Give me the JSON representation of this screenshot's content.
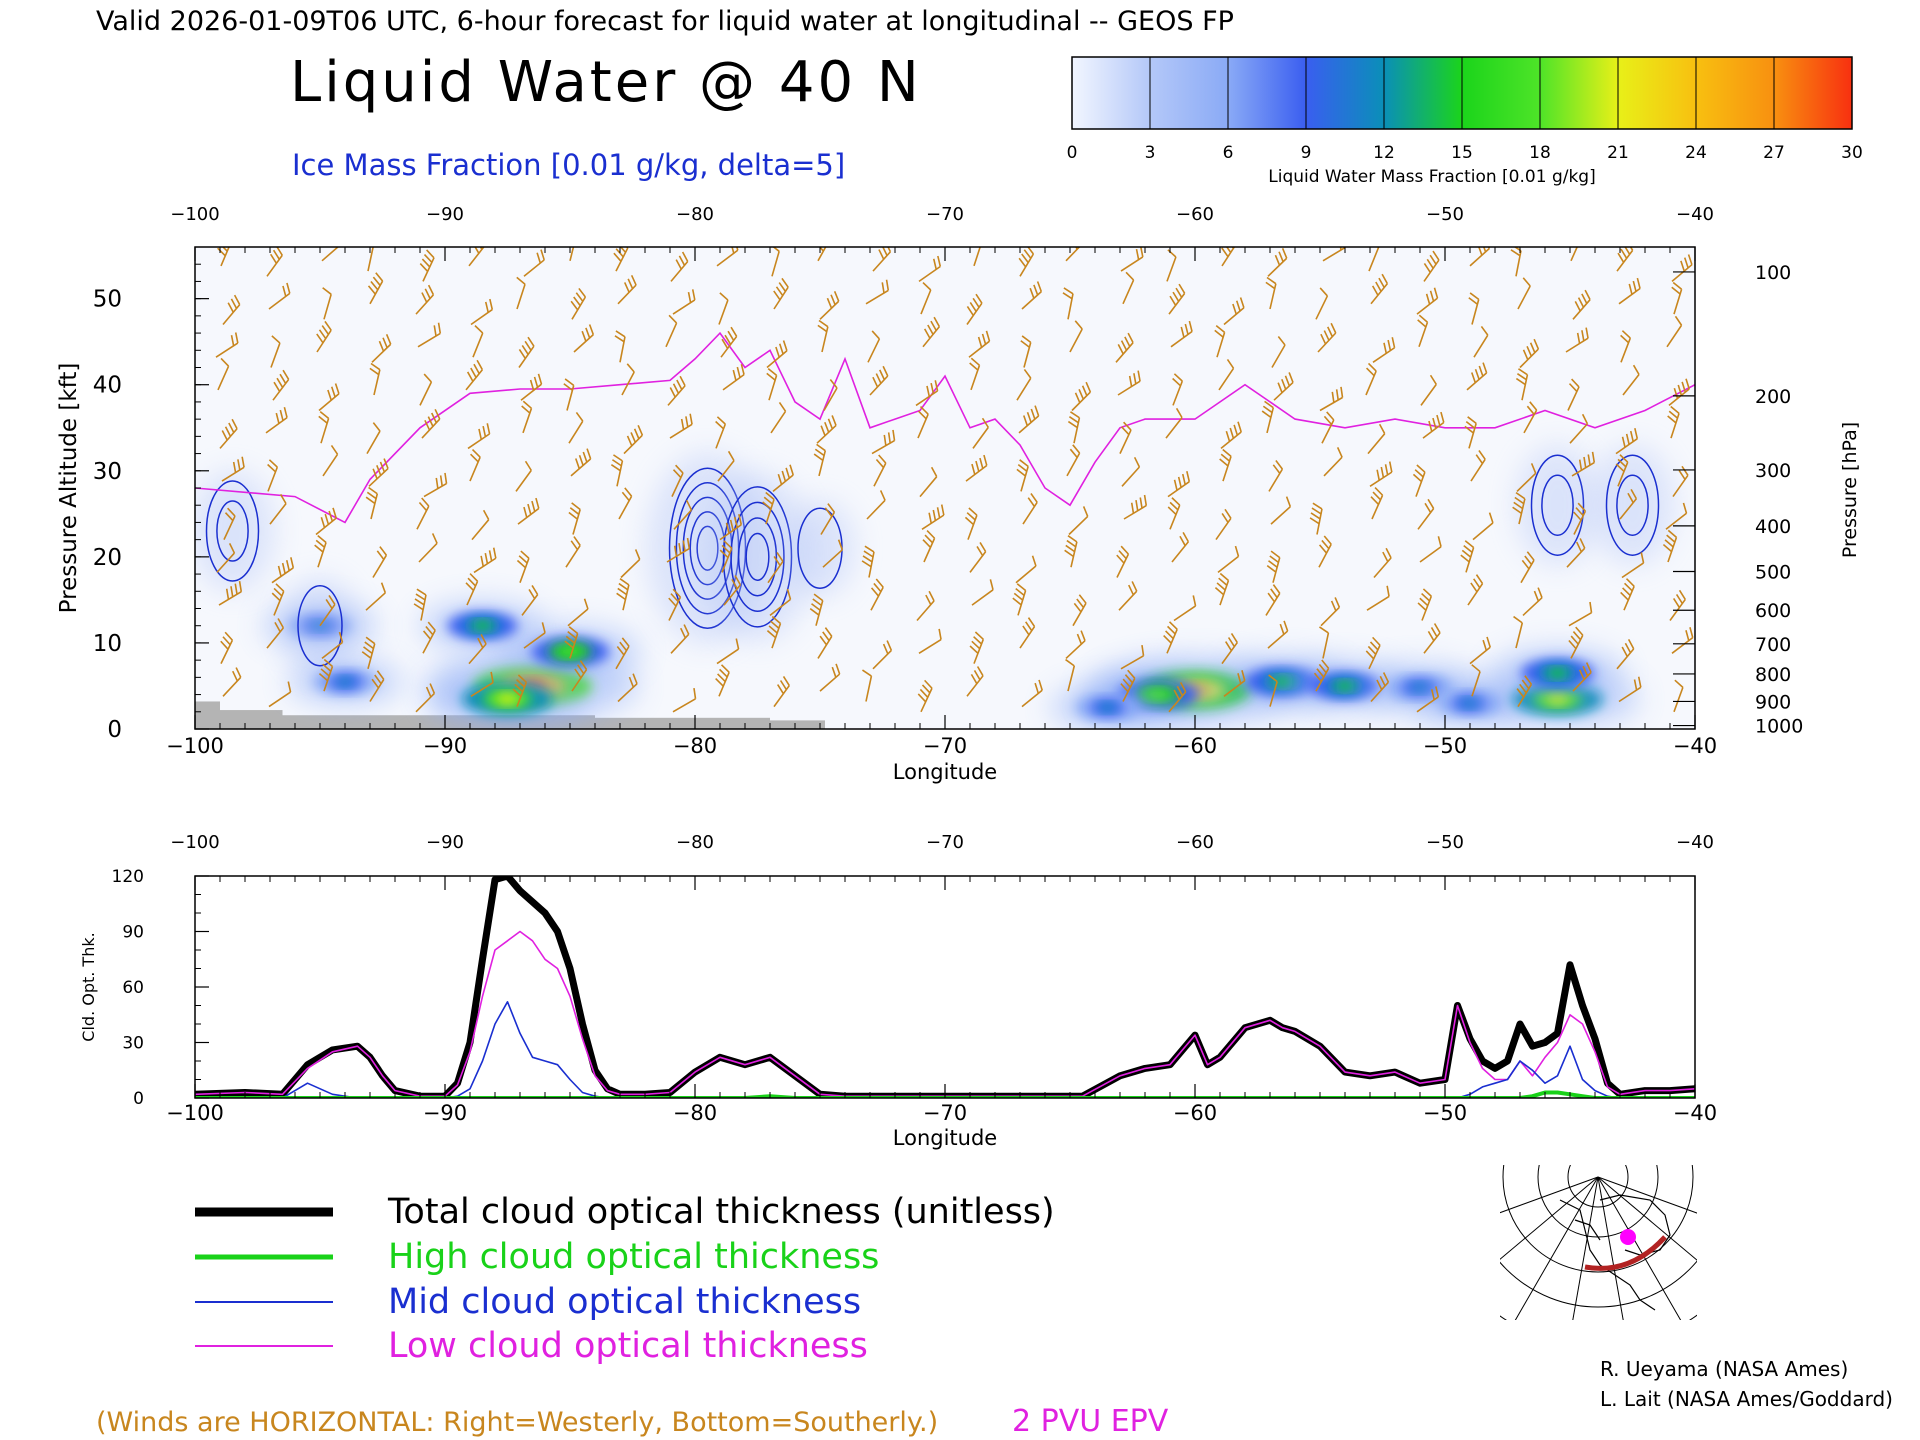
{
  "header": {
    "valid_line": "Valid 2026-01-09T06 UTC, 6-hour forecast for liquid water at longitudinal -- GEOS FP",
    "title": "Liquid Water @ 40 N",
    "subtitle": "Ice Mass Fraction [0.01 g/kg, delta=5]"
  },
  "colorbar": {
    "label": "Liquid Water Mass Fraction [0.01 g/kg]",
    "ticks": [
      "0",
      "3",
      "6",
      "9",
      "12",
      "15",
      "18",
      "21",
      "24",
      "27",
      "30"
    ],
    "colors": [
      "#f2f6ff",
      "#b4c8f8",
      "#8aaaf6",
      "#3a5ef0",
      "#0a8fb8",
      "#1bd41b",
      "#4ee428",
      "#e8f018",
      "#f8c010",
      "#f89010",
      "#f83010"
    ]
  },
  "colors": {
    "wind": "#c8861e",
    "ice": "#1a2fd0",
    "epv": "#e021e0",
    "total": "#000000",
    "high": "#19d219",
    "mid": "#1a2fd0",
    "low": "#e021e0",
    "terrain": "#b4b4b4"
  },
  "chart_data": [
    {
      "type": "heatmap",
      "name": "liquid-water-cross-section",
      "title": "Liquid Water @ 40 N",
      "xlabel": "Longitude",
      "ylabel": "Pressure Altitude [kft]",
      "ylabel_right": "Pressure [hPa]",
      "xlim": [
        -100,
        -40
      ],
      "ylim": [
        0,
        56
      ],
      "x_ticks": [
        "-100",
        "-90",
        "-80",
        "-70",
        "-60",
        "-50",
        "-40"
      ],
      "y_ticks": [
        "0",
        "10",
        "20",
        "30",
        "40",
        "50"
      ],
      "pressure_ticks": [
        {
          "label": "100",
          "kft": 53.1
        },
        {
          "label": "200",
          "kft": 38.7
        },
        {
          "label": "300",
          "kft": 30.1
        },
        {
          "label": "400",
          "kft": 23.6
        },
        {
          "label": "500",
          "kft": 18.3
        },
        {
          "label": "600",
          "kft": 13.8
        },
        {
          "label": "700",
          "kft": 9.9
        },
        {
          "label": "800",
          "kft": 6.4
        },
        {
          "label": "900",
          "kft": 3.2
        },
        {
          "label": "1000",
          "kft": 0.4
        }
      ],
      "liquid_blobs": [
        {
          "lon": -86.5,
          "kft": 5.0,
          "value": 30
        },
        {
          "lon": -87.5,
          "kft": 3.5,
          "value": 21
        },
        {
          "lon": -85.0,
          "kft": 9.0,
          "value": 17
        },
        {
          "lon": -88.5,
          "kft": 12.0,
          "value": 14
        },
        {
          "lon": -94.0,
          "kft": 5.5,
          "value": 12
        },
        {
          "lon": -95.0,
          "kft": 12.0,
          "value": 12
        },
        {
          "lon": -60.0,
          "kft": 4.5,
          "value": 28
        },
        {
          "lon": -61.5,
          "kft": 4.0,
          "value": 18
        },
        {
          "lon": -56.5,
          "kft": 5.5,
          "value": 16
        },
        {
          "lon": -54.0,
          "kft": 5.0,
          "value": 14
        },
        {
          "lon": -51.0,
          "kft": 4.8,
          "value": 13
        },
        {
          "lon": -63.5,
          "kft": 2.5,
          "value": 12
        },
        {
          "lon": -49.0,
          "kft": 3.0,
          "value": 12
        },
        {
          "lon": -45.5,
          "kft": 3.5,
          "value": 21
        },
        {
          "lon": -45.5,
          "kft": 6.5,
          "value": 15
        }
      ],
      "ice_mass_fraction_max": [
        {
          "lon": -79.5,
          "kft": 21.0,
          "value": 25
        },
        {
          "lon": -77.5,
          "kft": 20.0,
          "value": 20
        },
        {
          "lon": -98.5,
          "kft": 23.0,
          "value": 10
        },
        {
          "lon": -45.5,
          "kft": 26.0,
          "value": 10
        },
        {
          "lon": -42.5,
          "kft": 26.0,
          "value": 10
        },
        {
          "lon": -95.0,
          "kft": 12.0,
          "value": 5
        },
        {
          "lon": -75.0,
          "kft": 21.0,
          "value": 5
        }
      ],
      "epv_2pvu_kft": {
        "lon": [
          -100,
          -96,
          -94,
          -93,
          -91,
          -89,
          -87,
          -85,
          -83,
          -81,
          -80,
          -79,
          -78,
          -77,
          -76,
          -75,
          -74,
          -73,
          -72,
          -71,
          -70,
          -69,
          -68,
          -67,
          -66,
          -65,
          -64,
          -63,
          -62,
          -60,
          -58,
          -56,
          -54,
          -52,
          -50,
          -48,
          -46,
          -44,
          -42,
          -40
        ],
        "kft": [
          28,
          27,
          24,
          29,
          35,
          39,
          39.5,
          39.5,
          40,
          40.5,
          43,
          46,
          42,
          44,
          38,
          36,
          43,
          35,
          36,
          37,
          41,
          35,
          36,
          33,
          28,
          26,
          31,
          35,
          36,
          36,
          40,
          36,
          35,
          36,
          35,
          35,
          37,
          35,
          37,
          40
        ]
      },
      "terrain_kft": [
        {
          "lon_from": -100,
          "lon_to": -99,
          "kft": 3.2
        },
        {
          "lon_from": -99,
          "lon_to": -96.5,
          "kft": 2.2
        },
        {
          "lon_from": -96.5,
          "lon_to": -84,
          "kft": 1.6
        },
        {
          "lon_from": -84,
          "lon_to": -77,
          "kft": 1.3
        },
        {
          "lon_from": -77,
          "lon_to": -74.8,
          "kft": 1.0
        }
      ],
      "wind_barb_grid": {
        "lon_step": 2,
        "kft_step": 5
      }
    },
    {
      "type": "line",
      "name": "cloud-optical-thickness",
      "xlabel": "Longitude",
      "ylabel": "Cld. Opt. Thk.",
      "xlim": [
        -100,
        -40
      ],
      "ylim": [
        0,
        120
      ],
      "x_ticks": [
        "-100",
        "-90",
        "-80",
        "-70",
        "-60",
        "-50",
        "-40"
      ],
      "y_ticks": [
        "0",
        "30",
        "60",
        "90",
        "120"
      ],
      "x": [
        -100,
        -98,
        -96.5,
        -95.5,
        -94.5,
        -93.5,
        -93,
        -92.5,
        -92,
        -91,
        -90,
        -89.5,
        -89,
        -88.5,
        -88,
        -87.5,
        -87,
        -86.5,
        -86,
        -85.5,
        -85,
        -84.5,
        -84,
        -83.5,
        -83,
        -82,
        -81,
        -80,
        -79,
        -78,
        -77,
        -76,
        -75,
        -74,
        -72,
        -70,
        -68,
        -66,
        -64.5,
        -63,
        -62,
        -61,
        -60,
        -59.5,
        -59,
        -58,
        -57,
        -56.5,
        -56,
        -55,
        -54,
        -53,
        -52,
        -51,
        -50,
        -49.5,
        -49,
        -48.5,
        -48,
        -47.5,
        -47,
        -46.5,
        -46,
        -45.5,
        -45,
        -44.5,
        -44,
        -43.5,
        -43,
        -42,
        -41,
        -40
      ],
      "series": [
        {
          "name": "Total cloud optical thickness (unitless)",
          "values": [
            2,
            3,
            2,
            18,
            26,
            28,
            22,
            12,
            4,
            1,
            1,
            8,
            30,
            75,
            118,
            120,
            112,
            106,
            100,
            90,
            70,
            40,
            15,
            5,
            2,
            2,
            3,
            14,
            22,
            18,
            22,
            12,
            2,
            1,
            1,
            1,
            1,
            1,
            1,
            12,
            16,
            18,
            34,
            18,
            22,
            38,
            42,
            38,
            36,
            28,
            14,
            12,
            14,
            8,
            10,
            50,
            32,
            20,
            16,
            20,
            40,
            28,
            30,
            35,
            72,
            50,
            32,
            8,
            2,
            4,
            4,
            5
          ]
        },
        {
          "name": "Low cloud optical thickness",
          "values": [
            2,
            3,
            2,
            16,
            25,
            28,
            22,
            12,
            4,
            1,
            1,
            7,
            25,
            55,
            80,
            85,
            90,
            85,
            75,
            70,
            55,
            32,
            12,
            4,
            2,
            2,
            3,
            14,
            22,
            18,
            22,
            12,
            2,
            1,
            1,
            1,
            1,
            1,
            1,
            12,
            16,
            18,
            34,
            18,
            22,
            38,
            42,
            38,
            36,
            28,
            14,
            12,
            14,
            8,
            10,
            50,
            30,
            16,
            10,
            10,
            20,
            12,
            22,
            30,
            45,
            40,
            25,
            6,
            2,
            4,
            4,
            5
          ]
        },
        {
          "name": "Mid cloud optical thickness",
          "values": [
            0,
            0,
            0,
            8,
            2,
            0,
            0,
            0,
            0,
            0,
            0,
            1,
            5,
            20,
            40,
            52,
            35,
            22,
            20,
            18,
            10,
            3,
            1,
            0,
            0,
            0,
            0,
            0,
            0,
            0,
            0,
            0,
            0,
            0,
            0,
            0,
            0,
            0,
            0,
            0,
            0,
            0,
            0,
            0,
            0,
            0,
            0,
            0,
            0,
            0,
            0,
            0,
            0,
            0,
            0,
            0,
            2,
            6,
            8,
            10,
            20,
            15,
            8,
            12,
            28,
            10,
            4,
            1,
            0,
            0,
            0,
            0
          ]
        },
        {
          "name": "High cloud optical thickness",
          "values": [
            0,
            0,
            0,
            0,
            0,
            0,
            0,
            0,
            0,
            0,
            0,
            0,
            0,
            0,
            0,
            0,
            0,
            0,
            0,
            0,
            0,
            0,
            0,
            0,
            0,
            0,
            0,
            0,
            0,
            0,
            1,
            0,
            0,
            0,
            0,
            0,
            0,
            0,
            0,
            0,
            0,
            0,
            0,
            0,
            0,
            0,
            0,
            0,
            0,
            0,
            0,
            0,
            0,
            0,
            0,
            0,
            0,
            0,
            0,
            0,
            0,
            1,
            3,
            3,
            2,
            1,
            0,
            0,
            0,
            0,
            0,
            0
          ]
        }
      ]
    }
  ],
  "legend": {
    "total": "Total cloud optical thickness (unitless)",
    "high": "High cloud optical thickness",
    "mid": "Mid cloud optical thickness",
    "low": "Low cloud optical thickness"
  },
  "footer": {
    "winds_note": "(Winds are HORIZONTAL: Right=Westerly, Bottom=Southerly.)",
    "epv_label": "2 PVU EPV",
    "credit_1": "R. Ueyama (NASA Ames)",
    "credit_2": "L. Lait (NASA Ames/Goddard)"
  },
  "inset_map": {
    "marker_color": "#ff00ff",
    "track_color": "#b22222"
  }
}
